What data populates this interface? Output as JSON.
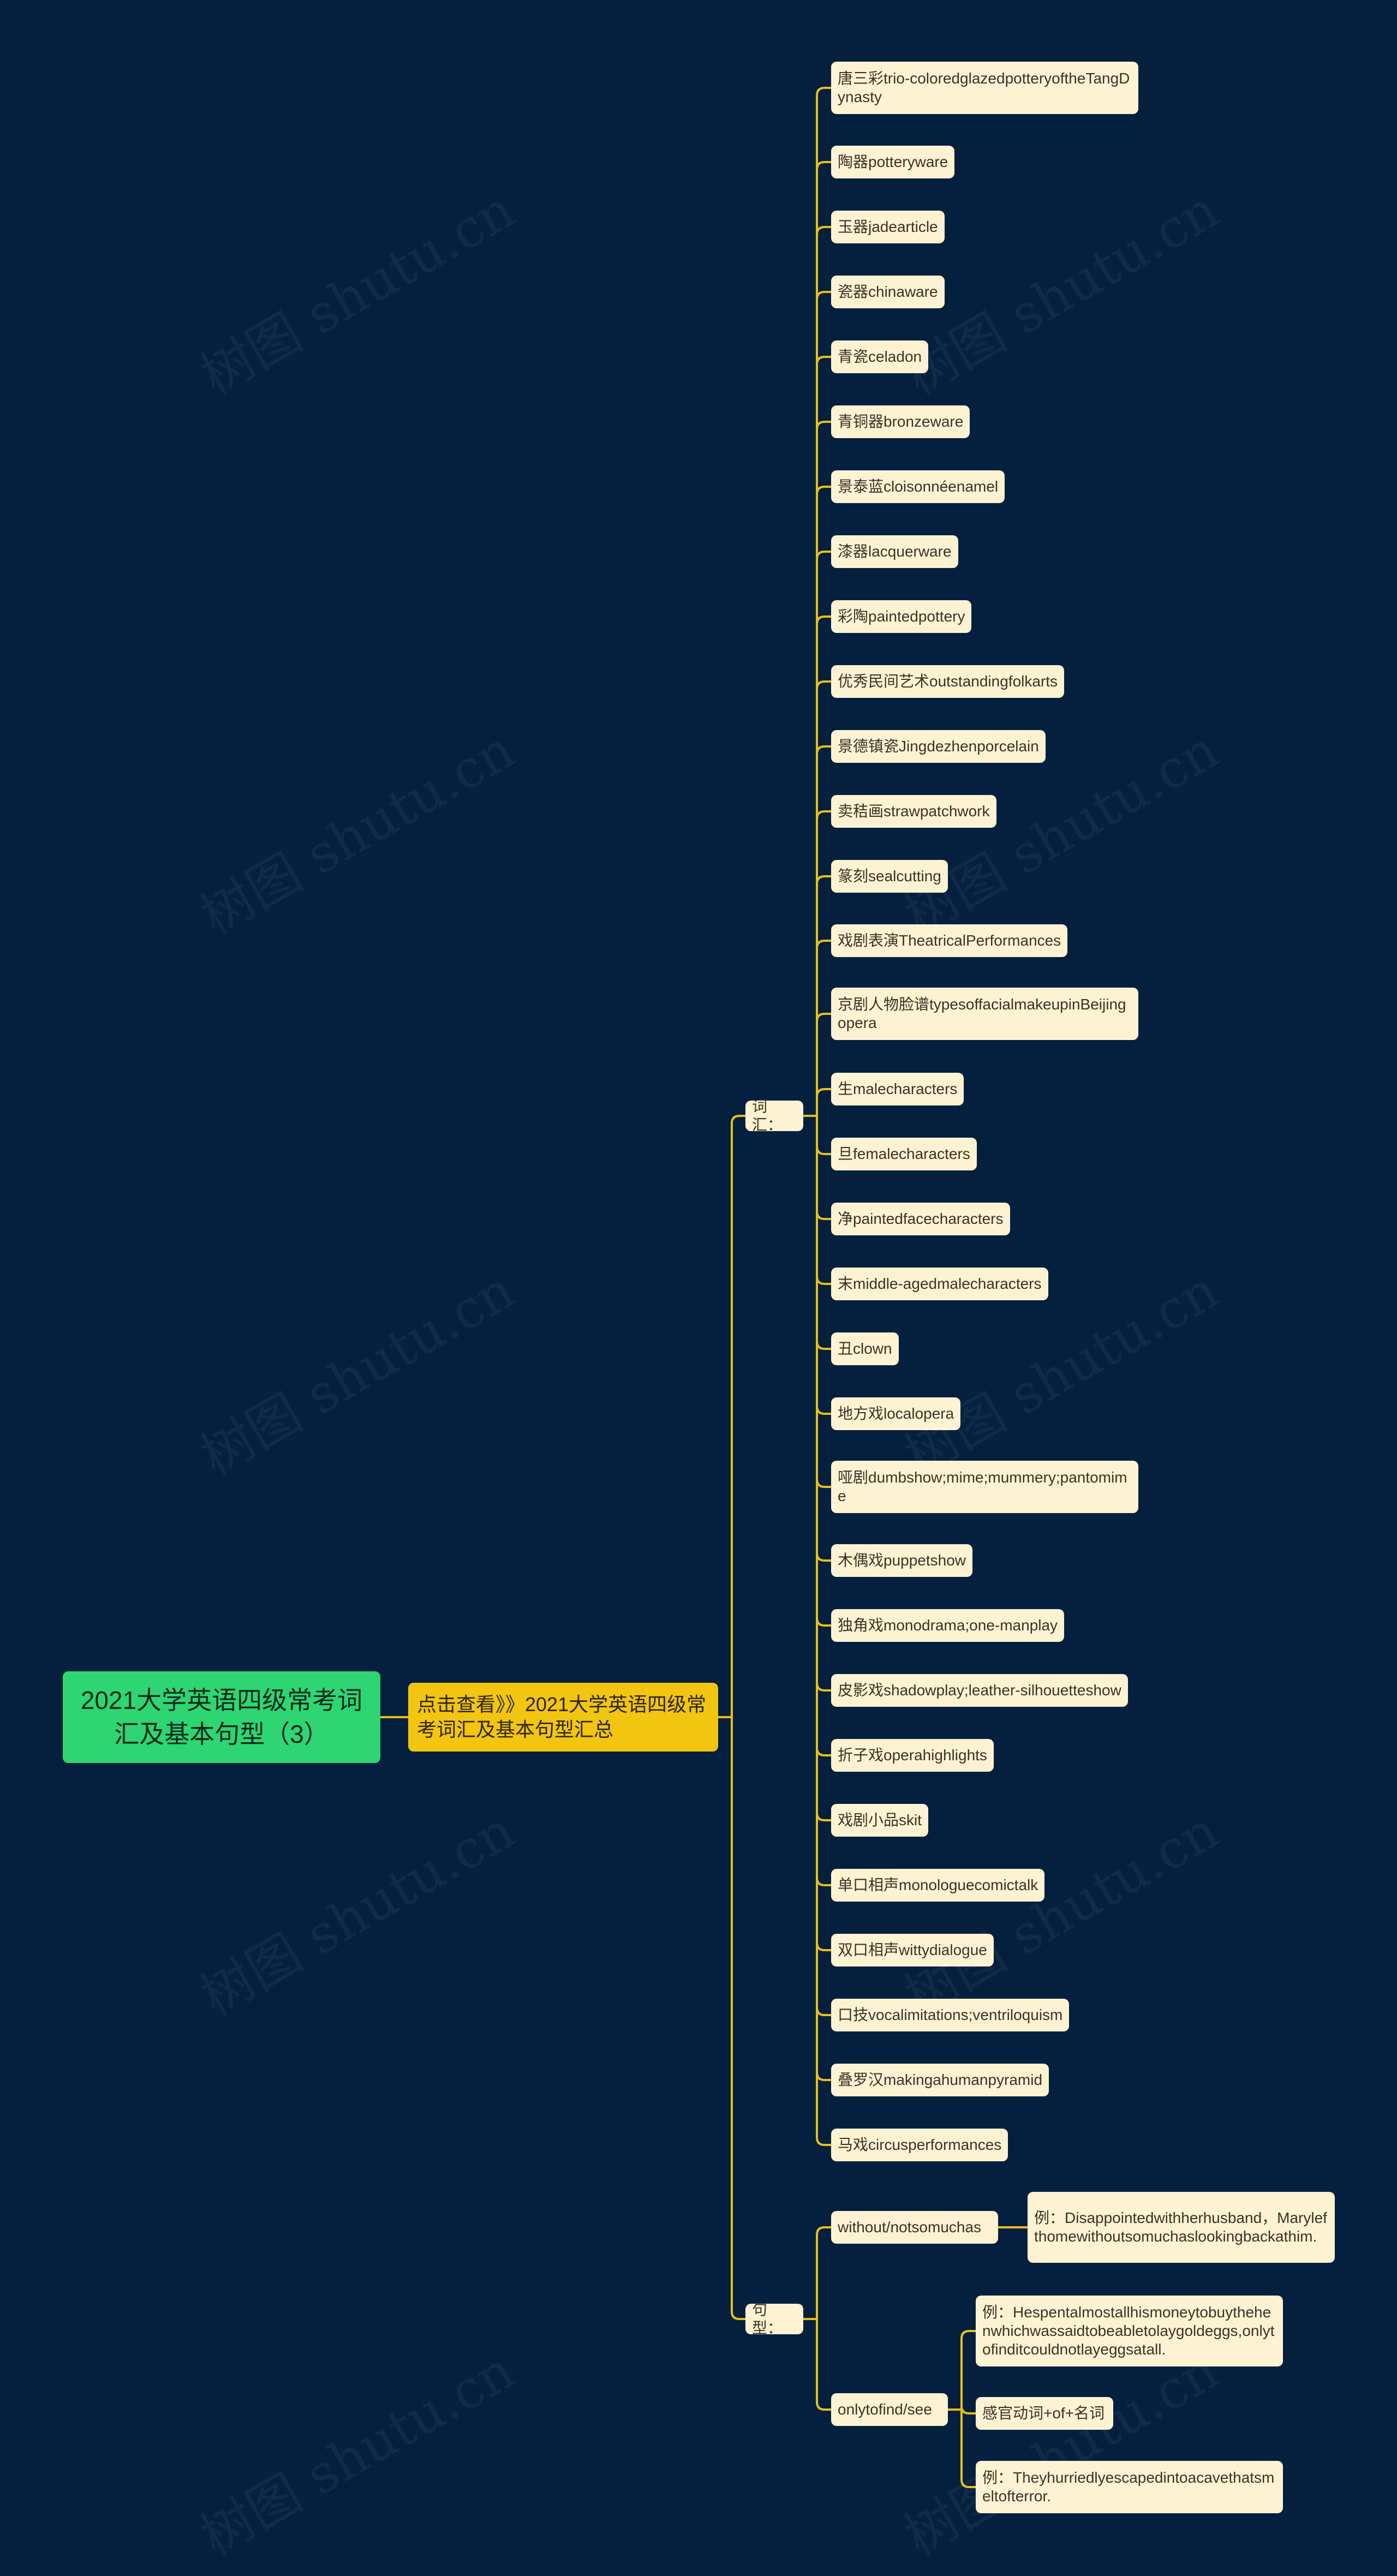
{
  "root": {
    "title": "2021大学英语四级常考词汇及基本句型（3）"
  },
  "center": {
    "label": "点击查看》》2021大学英语四级常考词汇及基本句型汇总"
  },
  "vocab": {
    "label": "词汇：",
    "items": [
      "唐三彩trio-coloredglazedpotteryoftheTangDynasty",
      "陶器potteryware",
      "玉器jadearticle",
      "瓷器chinaware",
      "青瓷celadon",
      "青铜器bronzeware",
      "景泰蓝cloisonnéenamel",
      "漆器lacquerware",
      "彩陶paintedpottery",
      "优秀民间艺术outstandingfolkarts",
      "景德镇瓷Jingdezhenporcelain",
      "卖秸画strawpatchwork",
      "篆刻sealcutting",
      "戏剧表演TheatricalPerformances",
      "京剧人物脸谱typesoffacialmakeupinBeijingopera",
      "生malecharacters",
      "旦femalecharacters",
      "净paintedfacecharacters",
      "末middle-agedmalecharacters",
      "丑clown",
      "地方戏localopera",
      "哑剧dumbshow;mime;mummery;pantomime",
      "木偶戏puppetshow",
      "独角戏monodrama;one-manplay",
      "皮影戏shadowplay;leather-silhouetteshow",
      "折子戏operahighlights",
      "戏剧小品skit",
      "单口相声monologuecomictalk",
      "双口相声wittydialogue",
      "口技vocalimitations;ventriloquism",
      "叠罗汉makingahumanpyramid",
      "马戏circusperformances"
    ]
  },
  "sentence": {
    "label": "句型：",
    "items": [
      {
        "label": "without/notsomuchas",
        "children": [
          "例：Disappointedwithherhusband，Marylefthomewithoutsomuchaslookingbackathim."
        ]
      },
      {
        "label": "onlytofind/see",
        "children": [
          "例：Hespentalmostallhismoneytobuythehenwhichwassaidtobeabletolaygoldeggs,onlytofinditcouldnotlayeggsatall.",
          "感官动词+of+名词",
          "例：Theyhurriedlyescapedintoacavethatsmeltofterror."
        ]
      }
    ]
  },
  "watermark": "树图 shutu.cn"
}
